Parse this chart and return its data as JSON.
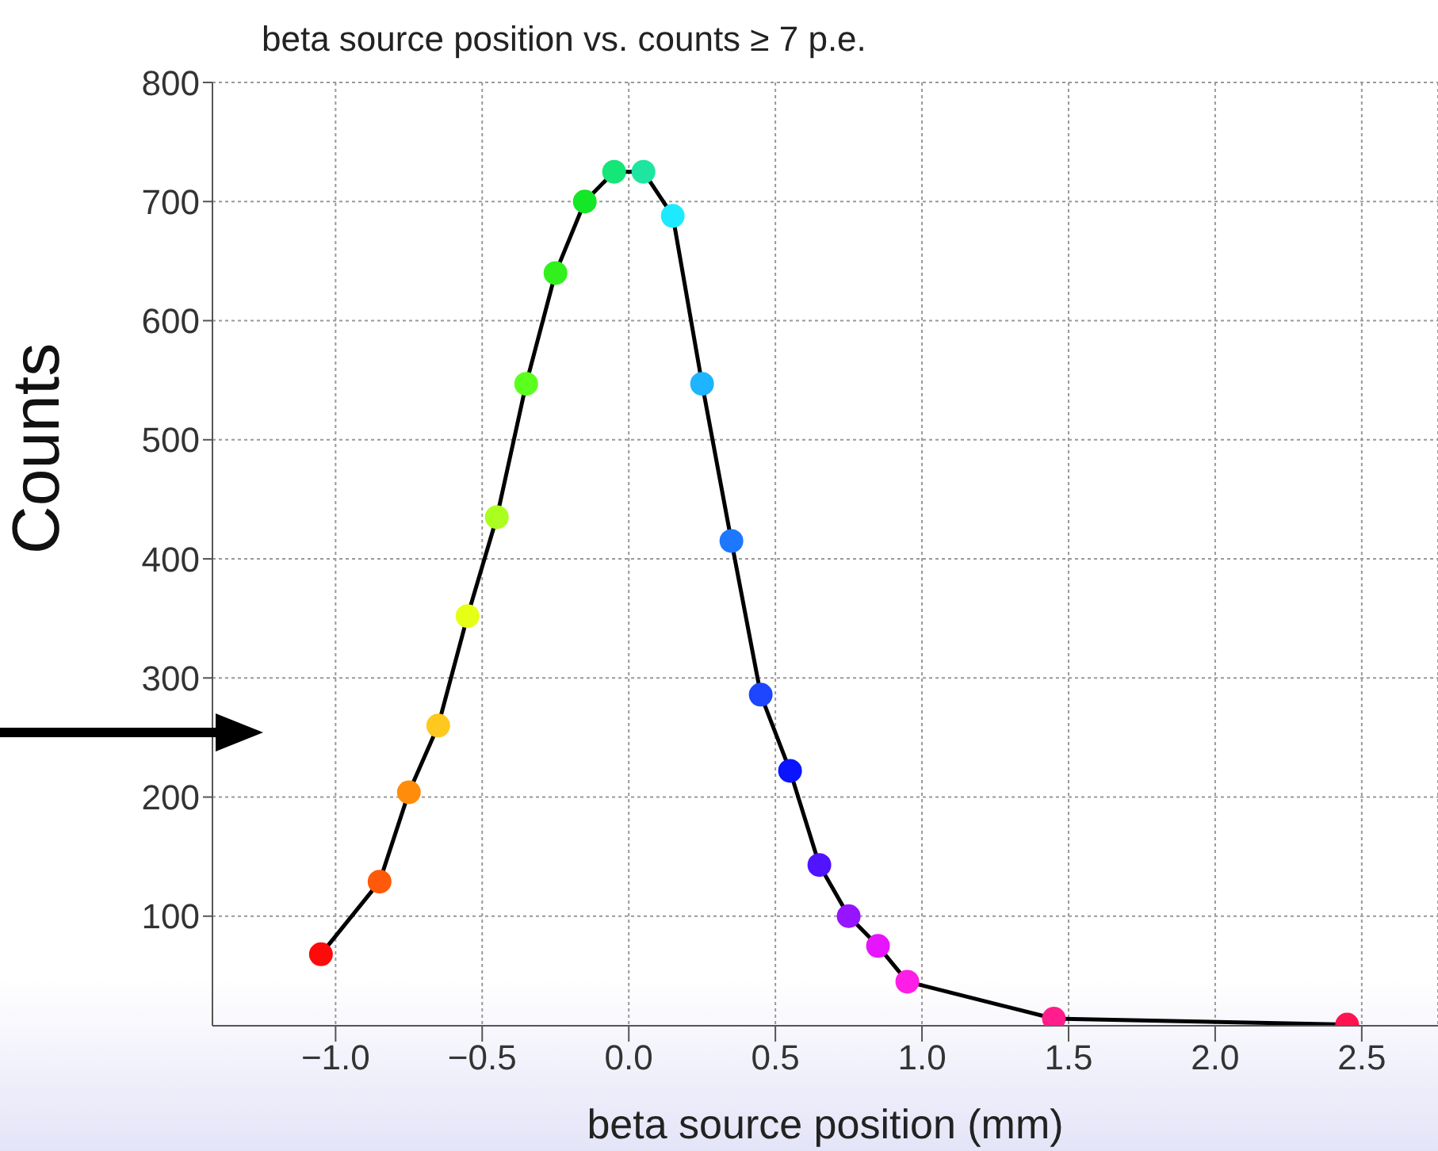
{
  "chart_data": {
    "type": "line",
    "title": "beta source position vs. counts ≥ 7 p.e.",
    "xlabel": "beta source position (mm)",
    "ylabel": "Counts",
    "x": [
      -1.05,
      -0.85,
      -0.75,
      -0.65,
      -0.55,
      -0.45,
      -0.35,
      -0.25,
      -0.15,
      -0.05,
      0.05,
      0.15,
      0.25,
      0.35,
      0.45,
      0.55,
      0.65,
      0.75,
      0.85,
      0.95,
      1.45,
      2.45
    ],
    "series": [
      {
        "color": "#000000",
        "values": [
          68,
          129,
          204,
          260,
          352,
          435,
          547,
          640,
          700,
          725,
          725,
          688,
          547,
          415,
          286,
          222,
          143,
          100,
          75,
          45,
          14,
          9
        ],
        "colors": [
          "#ff0a0a",
          "#ff5a0a",
          "#ff8c0a",
          "#ffc81e",
          "#e6ff14",
          "#aaff1e",
          "#5aff1e",
          "#32f01e",
          "#14e628",
          "#14e678",
          "#1ee6a0",
          "#1eeaff",
          "#1eb4ff",
          "#1e78ff",
          "#1e46ff",
          "#0a14ff",
          "#5014ff",
          "#9614ff",
          "#e614ff",
          "#ff1ee6",
          "#ff1e8c",
          "#ff1450"
        ]
      }
    ],
    "xlim": [
      -1.42,
      2.76
    ],
    "ylim": [
      8,
      800
    ],
    "xticks": [
      {
        "value": -1,
        "label": "−1.0"
      },
      {
        "value": -0.5,
        "label": "−0.5"
      },
      {
        "value": 0,
        "label": "0.0"
      },
      {
        "value": 0.5,
        "label": "0.5"
      },
      {
        "value": 1,
        "label": "1.0"
      },
      {
        "value": 1.5,
        "label": "1.5"
      },
      {
        "value": 2,
        "label": "2.0"
      },
      {
        "value": 2.5,
        "label": "2.5"
      }
    ],
    "yticks": [
      100,
      200,
      300,
      400,
      500,
      600,
      700,
      800
    ],
    "grid": true,
    "marker": "circle",
    "line_style": "solid"
  }
}
